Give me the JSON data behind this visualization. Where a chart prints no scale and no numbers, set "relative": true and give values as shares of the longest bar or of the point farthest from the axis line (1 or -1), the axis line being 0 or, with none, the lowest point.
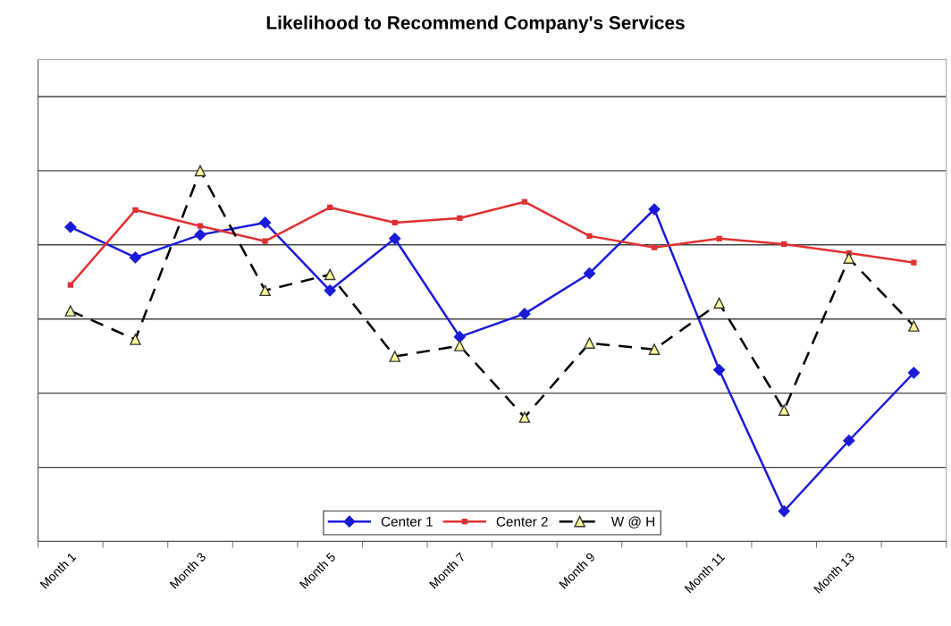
{
  "chart_data": {
    "type": "line",
    "title": "Likelihood to Recommend Company's Services",
    "relative": true,
    "grid": "y",
    "legend": "bottom",
    "categories": [
      "Month 1",
      null,
      "Month 3",
      null,
      "Month 5",
      null,
      "Month 7",
      null,
      "Month 9",
      null,
      "Month 11",
      null,
      "Month 13",
      null
    ],
    "series": [
      {
        "name": "Center 1",
        "color": "#1a1ad8",
        "marker": "diamond",
        "line_style": "solid",
        "values": [
          0.848,
          0.766,
          0.827,
          0.86,
          0.677,
          0.817,
          0.552,
          0.614,
          0.723,
          0.896,
          0.463,
          0.082,
          0.272,
          0.455
        ]
      },
      {
        "name": "Center 2",
        "color": "#e03030",
        "marker": "square",
        "line_style": "solid",
        "values": [
          0.692,
          0.894,
          0.851,
          0.81,
          0.901,
          0.86,
          0.872,
          0.916,
          0.824,
          0.793,
          0.817,
          0.802,
          0.778,
          0.752
        ]
      },
      {
        "name": "W @ H",
        "color": "#000000",
        "marker": "triangle",
        "line_style": "dashed",
        "values": [
          0.622,
          0.545,
          1,
          0.677,
          0.72,
          0.499,
          0.528,
          0.335,
          0.535,
          0.518,
          0.643,
          0.354,
          0.764,
          0.581
        ]
      }
    ]
  }
}
